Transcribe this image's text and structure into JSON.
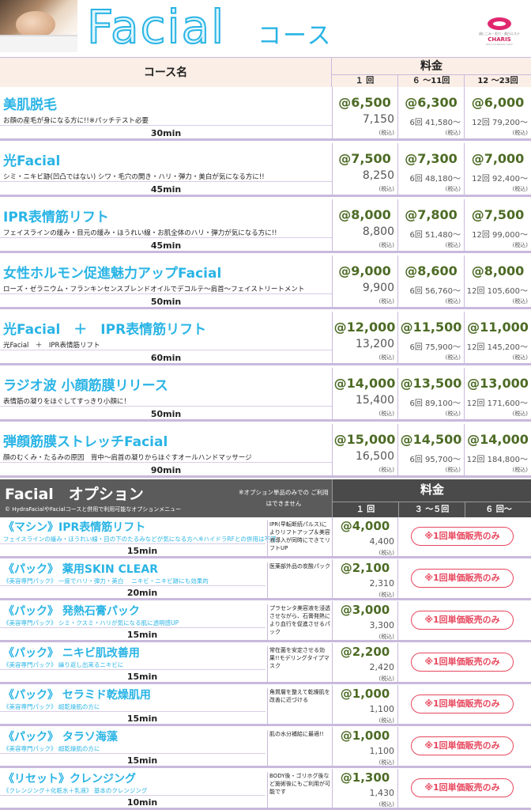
{
  "header": {
    "title": "Facial",
    "subtitle": "コース",
    "logo": {
      "small_text": "顔にこみ・毛穴・美白エステ",
      "name": "CHARIS",
      "tag": "Feminine Beauty Salon"
    }
  },
  "table_header": {
    "name_col": "コース名",
    "price_col": "料金",
    "sub_cols": [
      "１ 回",
      "６ ～11回",
      "12 ～23回"
    ]
  },
  "courses": [
    {
      "name": "美肌脱毛",
      "desc": "お顔の産毛が身になる方に!!※パッチテスト必要",
      "time": "30min",
      "p1": "@6,500",
      "p1_total": "7,150",
      "p2": "@6,300",
      "p2_total": "6回 41,580～",
      "p3": "@6,000",
      "p3_total": "12回 79,200～",
      "tax": "(税込)"
    },
    {
      "name": "光Facial",
      "desc": "シミ・ニキビ跡(凹凸ではない) シワ・毛穴の開き・ハリ・弾力・美白が気になる方に!!",
      "time": "45min",
      "p1": "@7,500",
      "p1_total": "8,250",
      "p2": "@7,300",
      "p2_total": "6回 48,180～",
      "p3": "@7,000",
      "p3_total": "12回 92,400～",
      "tax": "(税込)"
    },
    {
      "name": "IPR表情筋リフト",
      "desc": "フェイスラインの緩み・目元の緩み・ほうれい線・お肌全体のハリ・弾力が気になる方に!!",
      "time": "45min",
      "p1": "@8,000",
      "p1_total": "8,800",
      "p2": "@7,800",
      "p2_total": "6回 51,480～",
      "p3": "@7,500",
      "p3_total": "12回 99,000～",
      "tax": "(税込)"
    },
    {
      "name": "女性ホルモン促進魅力アップFacial",
      "desc": "ローズ・ゼラニウム・フランキンセンスブレンドオイルでデコルテ～肩首～フェイストリートメント",
      "time": "50min",
      "p1": "@9,000",
      "p1_total": "9,900",
      "p2": "@8,600",
      "p2_total": "6回 56,760～",
      "p3": "@8,000",
      "p3_total": "12回 105,600～",
      "tax": "(税込)"
    },
    {
      "name": "光Facial　＋　IPR表情筋リフト",
      "desc": "光Facial　＋　IPR表情筋リフト",
      "time": "60min",
      "p1": "@12,000",
      "p1_total": "13,200",
      "p2": "@11,500",
      "p2_total": "6回 75,900～",
      "p3": "@11,000",
      "p3_total": "12回 145,200～",
      "tax": "(税込)"
    },
    {
      "name": "ラジオ波 小顔筋膜リリース",
      "desc": "表情筋の凝りをほぐしてすっきり小顔に！",
      "time": "50min",
      "p1": "@14,000",
      "p1_total": "15,400",
      "p2": "@13,500",
      "p2_total": "6回 89,100～",
      "p3": "@13,000",
      "p3_total": "12回 171,600～",
      "tax": "(税込)"
    },
    {
      "name": "弾顔筋膜ストレッチFacial",
      "desc": "顔のむくみ・たるみの原因　背中～肩首の凝りからほぐすオールハンドマッサージ",
      "time": "90min",
      "p1": "@15,000",
      "p1_total": "16,500",
      "p2": "@14,500",
      "p2_total": "6回 95,700～",
      "p3": "@14,000",
      "p3_total": "12回 184,800～",
      "tax": "(税込)"
    }
  ],
  "options_header": {
    "title": "Facial　オプション",
    "subtitle": "© HydraFacialやFacialコースと併用で利用可能なオプションメニュー",
    "note": "※オプション単品のみでの ご利用はできません",
    "price_col": "料金",
    "sub_cols": [
      "１ 回",
      "３ ～５回",
      "６ 回～"
    ]
  },
  "options": [
    {
      "name": "《マシン》IPR表情筋リフト",
      "desc": "フェイスラインの緩み・ほうれい線・目の下のたるみなどが気になる方へ※ハイドラRFとの併用は不可",
      "time": "15min",
      "note": "IPR(早転断続パルス)によりリフトアップ＆美容液導入が同時にできてリフトUP",
      "price": "@4,000",
      "total": "4,400",
      "tax": "(税込)",
      "badge": "※1回単価販売のみ"
    },
    {
      "name": "《パック》 薬用SKIN CLEAR",
      "desc": "《美容専門パック》 一度でハリ・弾力・美白　 ニキビ・ニキビ跡にも効果的",
      "time": "20min",
      "note": "医薬部外品の炭酸パック",
      "price": "@2,100",
      "total": "2,310",
      "tax": "(税込)",
      "badge": "※1回単価販売のみ"
    },
    {
      "name": "《パック》 発熱石膏パック",
      "desc": "《美容専門パック》 シミ・クスミ・ハリが気になる肌に透明感UP",
      "time": "15min",
      "note": "プラセンタ美容液を浸透させながら、石膏発熱により血行を促進させるパック",
      "price": "@3,000",
      "total": "3,300",
      "tax": "(税込)",
      "badge": "※1回単価販売のみ"
    },
    {
      "name": "《パック》 ニキビ肌改善用",
      "desc": "《美容専門パック》 繰り返し出来るニキビに",
      "time": "15min",
      "note": "常在菌を安定させる効果!!モデリングタイプマスク",
      "price": "@2,200",
      "total": "2,420",
      "tax": "(税込)",
      "badge": "※1回単価販売のみ"
    },
    {
      "name": "《パック》 セラミド乾燥肌用",
      "desc": "《美容専門パック》 超乾燥肌の方に",
      "time": "15min",
      "note": "角質層を整えて乾燥肌を改善に近づける",
      "price": "@1,000",
      "total": "1,100",
      "tax": "(税込)",
      "badge": "※1回単価販売のみ"
    },
    {
      "name": "《パック》 タラソ海藻",
      "desc": "《美容専門パック》 超乾燥肌の方に",
      "time": "15min",
      "note": "肌の水分補給に最適!!",
      "price": "@1,000",
      "total": "1,100",
      "tax": "(税込)",
      "badge": "※1回単価販売のみ"
    },
    {
      "name": "《リセット》クレンジング",
      "desc": "《クレンジング＋化粧水＋乳液》 基本のクレンジング",
      "time": "10min",
      "note": "BODY後・ゴリホグ後など施術後にもご利用が可能です",
      "price": "@1,300",
      "total": "1,430",
      "tax": "(税込)",
      "badge": "※1回単価販売のみ"
    }
  ]
}
